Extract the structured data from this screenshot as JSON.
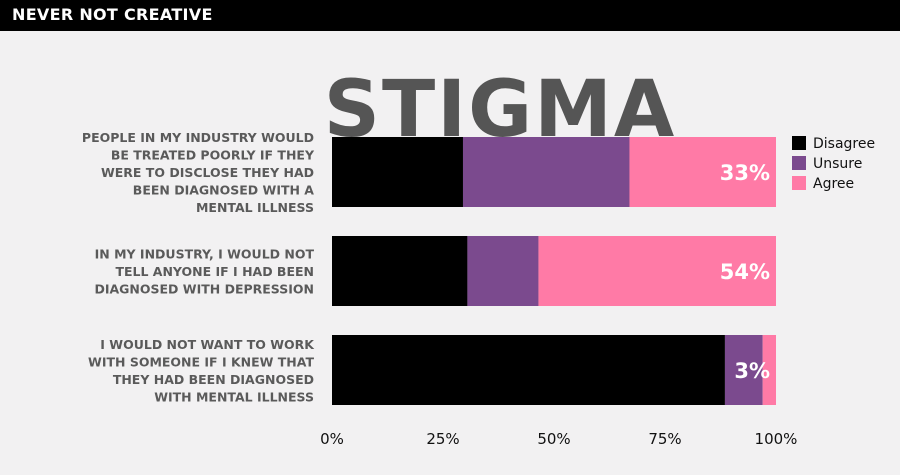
{
  "header": {
    "text": "NEVER NOT CREATIVE"
  },
  "chart_data": {
    "type": "bar",
    "orientation": "horizontal",
    "stacked": true,
    "title": "STIGMA",
    "categories": [
      "PEOPLE IN MY INDUSTRY WOULD BE TREATED POORLY IF THEY WERE TO DISCLOSE THEY HAD BEEN DIAGNOSED WITH A MENTAL ILLNESS",
      "IN MY INDUSTRY, I WOULD NOT TELL ANYONE IF I HAD BEEN DIAGNOSED WITH DEPRESSION",
      "I WOULD NOT WANT TO WORK WITH SOMEONE IF I KNEW THAT THEY HAD BEEN DIAGNOSED WITH MENTAL ILLNESS"
    ],
    "category_lines": [
      [
        "PEOPLE IN MY INDUSTRY WOULD",
        "BE TREATED POORLY IF THEY",
        "WERE TO DISCLOSE THEY HAD",
        "BEEN DIAGNOSED WITH A",
        "MENTAL ILLNESS"
      ],
      [
        "IN MY INDUSTRY, I WOULD NOT",
        "TELL ANYONE IF I HAD BEEN",
        "DIAGNOSED WITH DEPRESSION"
      ],
      [
        "I WOULD NOT WANT TO WORK",
        "WITH SOMEONE IF I KNEW THAT",
        "THEY HAD BEEN DIAGNOSED",
        "WITH MENTAL ILLNESS"
      ]
    ],
    "series": [
      {
        "name": "Disagree",
        "color": "#000000",
        "values": [
          29.5,
          30.5,
          88.5
        ]
      },
      {
        "name": "Unsure",
        "color": "#7b4a8e",
        "values": [
          37.5,
          16,
          8.5
        ]
      },
      {
        "name": "Agree",
        "color": "#ff7aa6",
        "values": [
          33,
          53.5,
          3
        ]
      }
    ],
    "data_labels": [
      "33%",
      "54%",
      "3%"
    ],
    "xlim": [
      0,
      100
    ],
    "x_ticks": [
      "0%",
      "25%",
      "50%",
      "75%",
      "100%"
    ],
    "legend_position": "top-right",
    "grid": false,
    "title_color": "#555555",
    "label_color": "#5a5a5a"
  }
}
